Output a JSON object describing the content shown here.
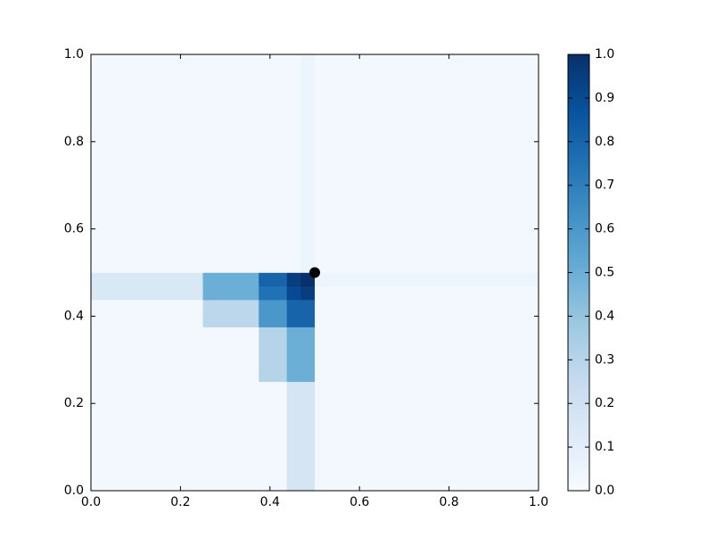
{
  "chart_data": {
    "type": "heatmap",
    "colormap": "Blues",
    "x_edges": [
      0,
      0.25,
      0.375,
      0.4375,
      0.46875,
      0.5,
      1.0
    ],
    "y_edges": [
      0,
      0.25,
      0.375,
      0.4375,
      0.46875,
      0.5,
      1.0
    ],
    "values": [
      [
        0.02,
        0.02,
        0.02,
        0.17,
        0.17,
        0.02
      ],
      [
        0.02,
        0.02,
        0.3,
        0.5,
        0.5,
        0.02
      ],
      [
        0.02,
        0.28,
        0.6,
        0.8,
        0.8,
        0.02
      ],
      [
        0.15,
        0.5,
        0.75,
        0.9,
        0.95,
        0.02
      ],
      [
        0.15,
        0.5,
        0.8,
        0.95,
        1.0,
        0.05
      ],
      [
        0.02,
        0.02,
        0.02,
        0.02,
        0.05,
        0.02
      ]
    ],
    "point": {
      "x": 0.5,
      "y": 0.5
    },
    "xlim": [
      0,
      1.0
    ],
    "ylim": [
      0,
      1.0
    ],
    "xticks": [
      {
        "value": 0,
        "label": "0.0"
      },
      {
        "value": 0.2,
        "label": "0.2"
      },
      {
        "value": 0.4,
        "label": "0.4"
      },
      {
        "value": 0.6,
        "label": "0.6"
      },
      {
        "value": 0.8,
        "label": "0.8"
      },
      {
        "value": 1.0,
        "label": "1.0"
      }
    ],
    "yticks": [
      {
        "value": 0,
        "label": "0.0"
      },
      {
        "value": 0.2,
        "label": "0.2"
      },
      {
        "value": 0.4,
        "label": "0.4"
      },
      {
        "value": 0.6,
        "label": "0.6"
      },
      {
        "value": 0.8,
        "label": "0.8"
      },
      {
        "value": 1.0,
        "label": "1.0"
      }
    ],
    "clim": [
      0,
      1.0
    ],
    "cticks": [
      {
        "value": 0,
        "label": "0.0"
      },
      {
        "value": 0.1,
        "label": "0.1"
      },
      {
        "value": 0.2,
        "label": "0.2"
      },
      {
        "value": 0.3,
        "label": "0.3"
      },
      {
        "value": 0.4,
        "label": "0.4"
      },
      {
        "value": 0.5,
        "label": "0.5"
      },
      {
        "value": 0.6,
        "label": "0.6"
      },
      {
        "value": 0.7,
        "label": "0.7"
      },
      {
        "value": 0.8,
        "label": "0.8"
      },
      {
        "value": 0.9,
        "label": "0.9"
      },
      {
        "value": 1.0,
        "label": "1.0"
      }
    ]
  }
}
